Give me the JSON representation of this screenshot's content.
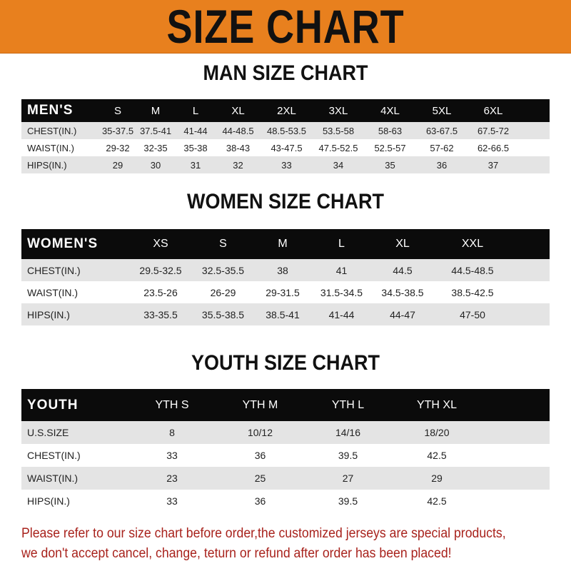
{
  "banner": {
    "title": "SIZE CHART",
    "color": "#e8801e"
  },
  "men": {
    "title": "MAN SIZE CHART",
    "header": [
      "MEN'S",
      "S",
      "M",
      "L",
      "XL",
      "2XL",
      "3XL",
      "4XL",
      "5XL",
      "6XL"
    ],
    "rows": [
      [
        "CHEST(IN.)",
        "35-37.5",
        "37.5-41",
        "41-44",
        "44-48.5",
        "48.5-53.5",
        "53.5-58",
        "58-63",
        "63-67.5",
        "67.5-72"
      ],
      [
        "WAIST(IN.)",
        "29-32",
        "32-35",
        "35-38",
        "38-43",
        "43-47.5",
        "47.5-52.5",
        "52.5-57",
        "57-62",
        "62-66.5"
      ],
      [
        "HIPS(IN.)",
        "29",
        "30",
        "31",
        "32",
        "33",
        "34",
        "35",
        "36",
        "37"
      ]
    ]
  },
  "women": {
    "title": "WOMEN SIZE CHART",
    "header": [
      "WOMEN'S",
      "XS",
      "S",
      "M",
      "L",
      "XL",
      "XXL"
    ],
    "rows": [
      [
        "CHEST(IN.)",
        "29.5-32.5",
        "32.5-35.5",
        "38",
        "41",
        "44.5",
        "44.5-48.5"
      ],
      [
        "WAIST(IN.)",
        "23.5-26",
        "26-29",
        "29-31.5",
        "31.5-34.5",
        "34.5-38.5",
        "38.5-42.5"
      ],
      [
        "HIPS(IN.)",
        "33-35.5",
        "35.5-38.5",
        "38.5-41",
        "41-44",
        "44-47",
        "47-50"
      ]
    ]
  },
  "youth": {
    "title": "YOUTH SIZE CHART",
    "header": [
      "YOUTH",
      "YTH S",
      "YTH M",
      "YTH L",
      "YTH XL"
    ],
    "rows": [
      [
        "U.S.SIZE",
        "8",
        "10/12",
        "14/16",
        "18/20"
      ],
      [
        "CHEST(IN.)",
        "33",
        "36",
        "39.5",
        "42.5"
      ],
      [
        "WAIST(IN.)",
        "23",
        "25",
        "27",
        "29"
      ],
      [
        "HIPS(IN.)",
        "33",
        "36",
        "39.5",
        "42.5"
      ]
    ]
  },
  "notice": {
    "line1": "Please refer to our size chart before order,the customized jerseys are special products,",
    "line2": "we don't accept cancel, change, teturn or refund after order has been placed!",
    "color": "#a8221c"
  }
}
